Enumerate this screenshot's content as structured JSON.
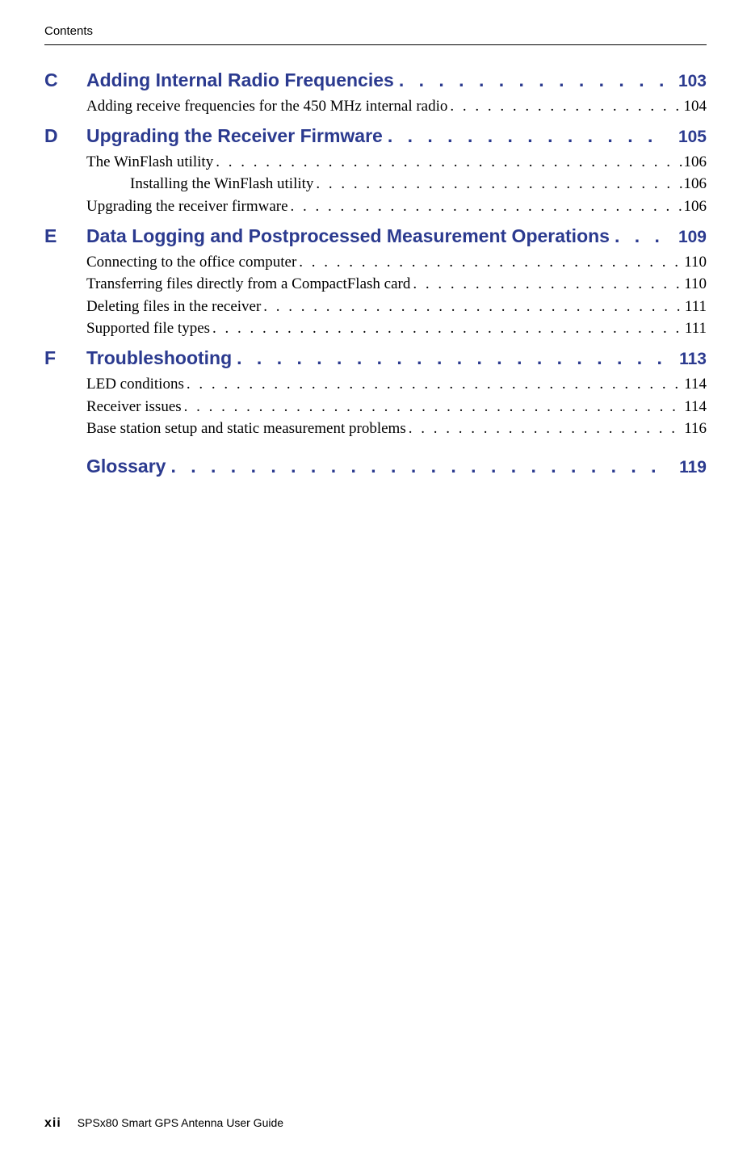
{
  "header": {
    "label": "Contents"
  },
  "sections": [
    {
      "letter": "C",
      "title": "Adding Internal Radio Frequencies",
      "page": "103",
      "entries": [
        {
          "text": "Adding receive frequencies for the 450 MHz internal radio",
          "page": "104",
          "indent": 0
        }
      ]
    },
    {
      "letter": "D",
      "title": "Upgrading the Receiver Firmware",
      "page": "105",
      "entries": [
        {
          "text": "The WinFlash utility",
          "page": "106",
          "indent": 0
        },
        {
          "text": "Installing the WinFlash utility",
          "page": "106",
          "indent": 1
        },
        {
          "text": "Upgrading the receiver firmware",
          "page": "106",
          "indent": 0
        }
      ]
    },
    {
      "letter": "E",
      "title": "Data Logging and Postprocessed Measurement Operations",
      "page": "109",
      "entries": [
        {
          "text": "Connecting to the office computer",
          "page": "110",
          "indent": 0
        },
        {
          "text": "Transferring files directly from a CompactFlash card",
          "page": "110",
          "indent": 0
        },
        {
          "text": "Deleting files in the receiver",
          "page": "111",
          "indent": 0
        },
        {
          "text": "Supported file types",
          "page": "111",
          "indent": 0
        }
      ]
    },
    {
      "letter": "F",
      "title": "Troubleshooting",
      "page": "113",
      "entries": [
        {
          "text": "LED conditions",
          "page": "114",
          "indent": 0
        },
        {
          "text": "Receiver issues",
          "page": "114",
          "indent": 0
        },
        {
          "text": "Base station setup and static measurement problems",
          "page": "116",
          "indent": 0
        }
      ]
    }
  ],
  "glossary": {
    "title": "Glossary",
    "page": "119"
  },
  "footer": {
    "page_number": "xii",
    "doc_title": "SPSx80 Smart GPS Antenna User Guide"
  },
  "colors": {
    "heading_blue": "#2b3a8f",
    "text_black": "#000000",
    "background": "#ffffff"
  }
}
